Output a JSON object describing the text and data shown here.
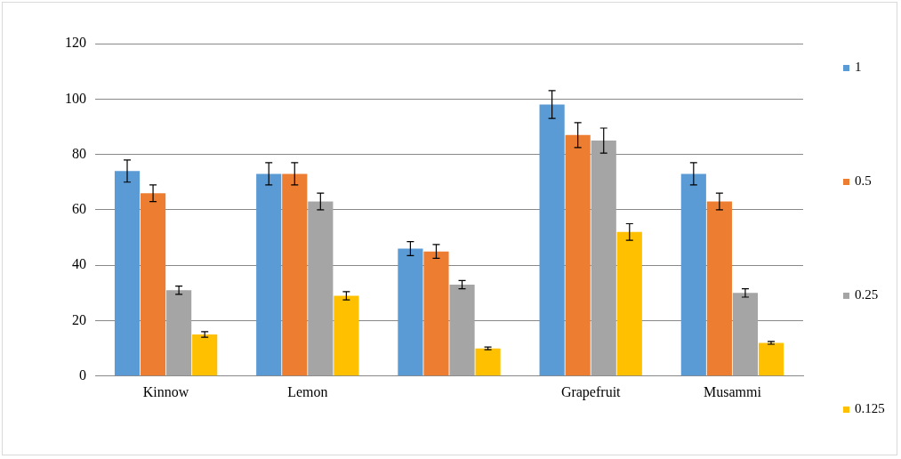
{
  "chart_data": {
    "type": "bar",
    "categories": [
      "Kinnow",
      "Lemon",
      null,
      "Grapefruit",
      "Musammi"
    ],
    "series": [
      {
        "name": "1",
        "color": "#5b9bd5",
        "values": [
          74,
          73,
          46,
          98,
          73
        ],
        "errors": [
          4,
          4,
          2.5,
          5,
          4
        ]
      },
      {
        "name": "0.5",
        "color": "#ed7d31",
        "values": [
          66,
          73,
          45,
          87,
          63
        ],
        "errors": [
          3,
          4,
          2.5,
          4.5,
          3
        ]
      },
      {
        "name": "0.25",
        "color": "#a5a5a5",
        "values": [
          31,
          63,
          33,
          85,
          30
        ],
        "errors": [
          1.5,
          3,
          1.5,
          4.5,
          1.5
        ]
      },
      {
        "name": "0.125",
        "color": "#ffc000",
        "values": [
          15,
          29,
          10,
          52,
          12
        ],
        "errors": [
          1,
          1.5,
          0.5,
          3,
          0.5
        ]
      }
    ],
    "ylim": [
      0,
      120
    ],
    "yticks": [
      0,
      20,
      40,
      60,
      80,
      100,
      120
    ],
    "grid": "y",
    "legend": "right"
  }
}
